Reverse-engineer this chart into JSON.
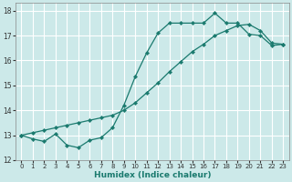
{
  "xlabel": "Humidex (Indice chaleur)",
  "xlim": [
    -0.5,
    23.5
  ],
  "ylim": [
    12,
    18.3
  ],
  "yticks": [
    12,
    13,
    14,
    15,
    16,
    17,
    18
  ],
  "xticks": [
    0,
    1,
    2,
    3,
    4,
    5,
    6,
    7,
    8,
    9,
    10,
    11,
    12,
    13,
    14,
    15,
    16,
    17,
    18,
    19,
    20,
    21,
    22,
    23
  ],
  "bg_color": "#cce9e9",
  "grid_color": "#ffffff",
  "line_color": "#1a7a6e",
  "line1_x": [
    0,
    1,
    2,
    3,
    4,
    5,
    6,
    7,
    8,
    9,
    10,
    11,
    12,
    13,
    14,
    15,
    16,
    17,
    18,
    19,
    20,
    21,
    22,
    23
  ],
  "line1_y": [
    13.0,
    12.85,
    12.75,
    13.05,
    12.6,
    12.5,
    12.8,
    12.9,
    13.3,
    14.2,
    15.35,
    16.3,
    17.1,
    17.5,
    17.5,
    17.5,
    17.5,
    17.9,
    17.5,
    17.5,
    17.05,
    17.0,
    16.6,
    16.65
  ],
  "line2_x": [
    0,
    1,
    2,
    3,
    4,
    5,
    6,
    7,
    8,
    9,
    10,
    11,
    12,
    13,
    14,
    15,
    16,
    17,
    18,
    19,
    20,
    21,
    22,
    23
  ],
  "line2_y": [
    13.0,
    13.1,
    13.2,
    13.3,
    13.4,
    13.5,
    13.6,
    13.7,
    13.8,
    14.0,
    14.3,
    14.7,
    15.1,
    15.55,
    15.95,
    16.35,
    16.65,
    17.0,
    17.2,
    17.4,
    17.45,
    17.2,
    16.7,
    16.65
  ]
}
